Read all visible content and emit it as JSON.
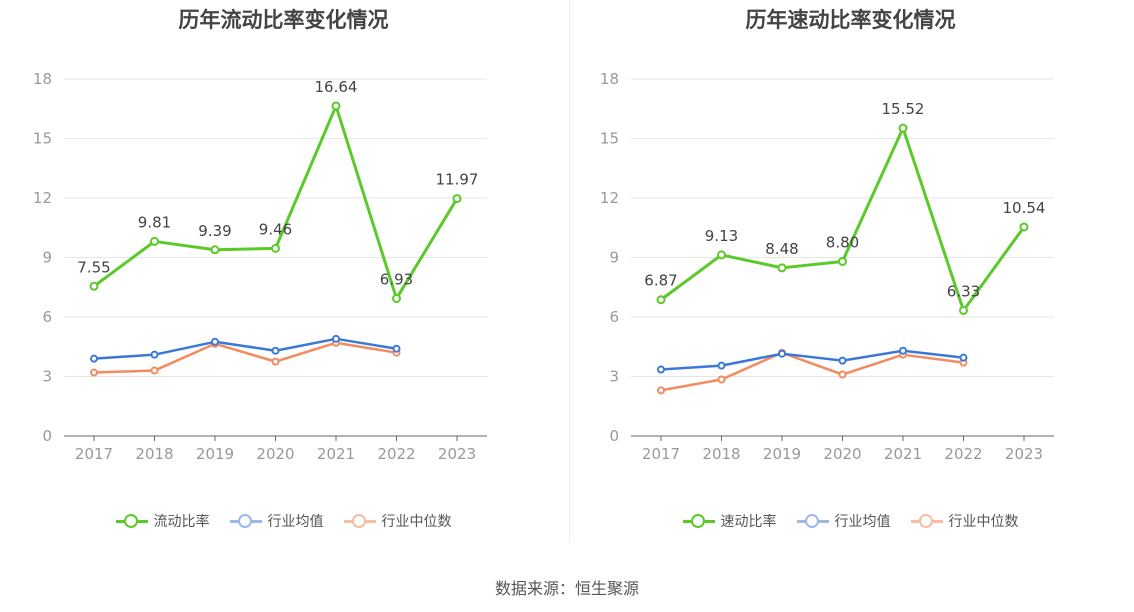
{
  "charts": [
    {
      "title": "历年流动比率变化情况",
      "legend": [
        {
          "label": "流动比率",
          "color": "#5bc929"
        },
        {
          "label": "行业均值",
          "color": "#3b78d8"
        },
        {
          "label": "行业中位数",
          "color": "#f28b5f"
        }
      ]
    },
    {
      "title": "历年速动比率变化情况",
      "legend": [
        {
          "label": "速动比率",
          "color": "#5bc929"
        },
        {
          "label": "行业均值",
          "color": "#3b78d8"
        },
        {
          "label": "行业中位数",
          "color": "#f28b5f"
        }
      ]
    }
  ],
  "source": "数据来源：恒生聚源",
  "chart_data": [
    {
      "type": "line",
      "title": "历年流动比率变化情况",
      "categories": [
        "2017",
        "2018",
        "2019",
        "2020",
        "2021",
        "2022",
        "2023"
      ],
      "ylim": [
        0,
        18
      ],
      "yticks": [
        0,
        3,
        6,
        9,
        12,
        15,
        18
      ],
      "grid": true,
      "legend_position": "bottom",
      "series": [
        {
          "name": "流动比率",
          "color": "#5bc929",
          "values": [
            7.55,
            9.81,
            9.39,
            9.46,
            16.64,
            6.93,
            11.97
          ],
          "labels": [
            "7.55",
            "9.81",
            "9.39",
            "9.46",
            "16.64",
            "6.93",
            "11.97"
          ]
        },
        {
          "name": "行业均值",
          "color": "#3b78d8",
          "values": [
            3.9,
            4.1,
            4.75,
            4.3,
            4.9,
            4.4,
            null
          ]
        },
        {
          "name": "行业中位数",
          "color": "#f28b5f",
          "values": [
            3.2,
            3.3,
            4.65,
            3.75,
            4.7,
            4.2,
            null
          ]
        }
      ]
    },
    {
      "type": "line",
      "title": "历年速动比率变化情况",
      "categories": [
        "2017",
        "2018",
        "2019",
        "2020",
        "2021",
        "2022",
        "2023"
      ],
      "ylim": [
        0,
        18
      ],
      "yticks": [
        0,
        3,
        6,
        9,
        12,
        15,
        18
      ],
      "grid": true,
      "legend_position": "bottom",
      "series": [
        {
          "name": "速动比率",
          "color": "#5bc929",
          "values": [
            6.87,
            9.13,
            8.48,
            8.8,
            15.52,
            6.33,
            10.54
          ],
          "labels": [
            "6.87",
            "9.13",
            "8.48",
            "8.80",
            "15.52",
            "6.33",
            "10.54"
          ]
        },
        {
          "name": "行业均值",
          "color": "#3b78d8",
          "values": [
            3.35,
            3.55,
            4.15,
            3.8,
            4.3,
            3.95,
            null
          ]
        },
        {
          "name": "行业中位数",
          "color": "#f28b5f",
          "values": [
            2.3,
            2.85,
            4.2,
            3.1,
            4.1,
            3.7,
            null
          ]
        }
      ]
    }
  ]
}
